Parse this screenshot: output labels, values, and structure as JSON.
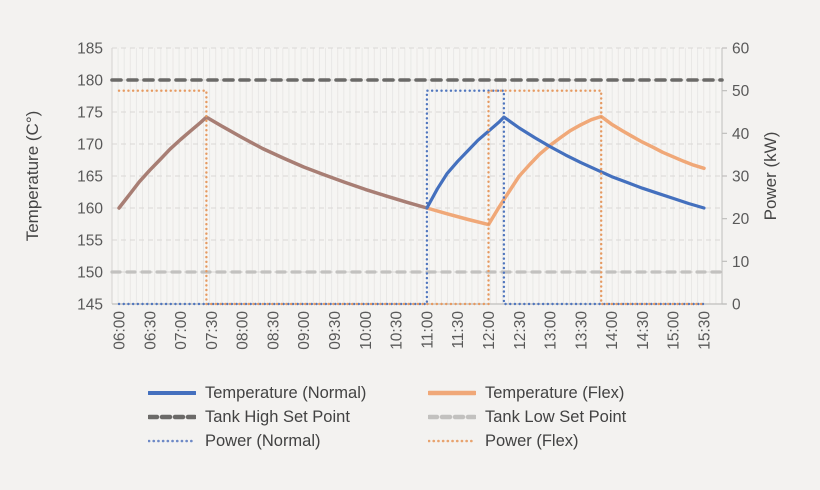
{
  "page": {
    "background": "#F3F2F0"
  },
  "chart_data": {
    "type": "line",
    "title": "",
    "x": {
      "start_hour": 6,
      "end_hour": 15.5,
      "categories": [
        "06:00",
        "06:30",
        "07:00",
        "07:30",
        "08:00",
        "08:30",
        "09:00",
        "09:30",
        "10:00",
        "10:30",
        "11:00",
        "11:30",
        "12:00",
        "12:30",
        "13:00",
        "13:30",
        "14:00",
        "14:30",
        "15:00",
        "15:30"
      ]
    },
    "y_left": {
      "label": "Temperature (C°)",
      "min": 145,
      "max": 185,
      "step": 5,
      "ticks": [
        145,
        150,
        155,
        160,
        165,
        170,
        175,
        180,
        185
      ]
    },
    "y_right": {
      "label": "Power (kW)",
      "min": 0,
      "max": 60,
      "step": 10,
      "ticks": [
        0,
        10,
        20,
        30,
        40,
        50,
        60
      ]
    },
    "grid": {
      "vertical_minor": true,
      "horizontal_dashed": true,
      "legend_position": "bottom"
    },
    "series": [
      {
        "name": "Temperature (Normal)",
        "axis": "left",
        "style": "solid",
        "color": "#4470BE",
        "width": 3.2,
        "points": [
          [
            6,
            160
          ],
          [
            6.17,
            162.1
          ],
          [
            6.33,
            164.1
          ],
          [
            6.5,
            165.9
          ],
          [
            6.67,
            167.6
          ],
          [
            6.83,
            169.2
          ],
          [
            7,
            170.7
          ],
          [
            7.17,
            172.1
          ],
          [
            7.33,
            173.4
          ],
          [
            7.42,
            174.2
          ],
          [
            7.67,
            172.8
          ],
          [
            8,
            171
          ],
          [
            8.33,
            169.3
          ],
          [
            8.67,
            167.8
          ],
          [
            9,
            166.4
          ],
          [
            9.33,
            165.2
          ],
          [
            9.67,
            164
          ],
          [
            10,
            162.9
          ],
          [
            10.33,
            161.9
          ],
          [
            10.67,
            160.9
          ],
          [
            11,
            160
          ],
          [
            11.17,
            163
          ],
          [
            11.33,
            165.4
          ],
          [
            11.5,
            167.3
          ],
          [
            11.67,
            169
          ],
          [
            11.83,
            170.6
          ],
          [
            12,
            172
          ],
          [
            12.17,
            173.4
          ],
          [
            12.25,
            174.2
          ],
          [
            12.5,
            172.5
          ],
          [
            12.75,
            171
          ],
          [
            13,
            169.6
          ],
          [
            13.25,
            168.3
          ],
          [
            13.5,
            167.1
          ],
          [
            13.75,
            166
          ],
          [
            14,
            164.9
          ],
          [
            14.25,
            164
          ],
          [
            14.5,
            163.1
          ],
          [
            14.75,
            162.3
          ],
          [
            15,
            161.5
          ],
          [
            15.25,
            160.7
          ],
          [
            15.5,
            160
          ]
        ]
      },
      {
        "name": "Temperature (Flex)",
        "axis": "left",
        "style": "solid",
        "color": "#F0A878",
        "width": 3.5,
        "overlap_until": 11,
        "overlap_color": "#A87E74",
        "points": [
          [
            6,
            160
          ],
          [
            6.17,
            162.1
          ],
          [
            6.33,
            164.1
          ],
          [
            6.5,
            165.9
          ],
          [
            6.67,
            167.6
          ],
          [
            6.83,
            169.2
          ],
          [
            7,
            170.7
          ],
          [
            7.17,
            172.1
          ],
          [
            7.33,
            173.4
          ],
          [
            7.42,
            174.2
          ],
          [
            7.67,
            172.8
          ],
          [
            8,
            171
          ],
          [
            8.33,
            169.3
          ],
          [
            8.67,
            167.8
          ],
          [
            9,
            166.4
          ],
          [
            9.33,
            165.2
          ],
          [
            9.67,
            164
          ],
          [
            10,
            162.9
          ],
          [
            10.33,
            161.9
          ],
          [
            10.67,
            160.9
          ],
          [
            11,
            160
          ],
          [
            11.33,
            159.1
          ],
          [
            11.67,
            158.2
          ],
          [
            12,
            157.4
          ],
          [
            12.17,
            160.1
          ],
          [
            12.33,
            162.5
          ],
          [
            12.5,
            165
          ],
          [
            12.67,
            166.8
          ],
          [
            12.83,
            168.4
          ],
          [
            13,
            169.8
          ],
          [
            13.17,
            171
          ],
          [
            13.33,
            172.1
          ],
          [
            13.5,
            173
          ],
          [
            13.67,
            173.8
          ],
          [
            13.83,
            174.3
          ],
          [
            14,
            173.1
          ],
          [
            14.17,
            172.1
          ],
          [
            14.33,
            171.2
          ],
          [
            14.5,
            170.3
          ],
          [
            14.67,
            169.5
          ],
          [
            14.83,
            168.7
          ],
          [
            15,
            168
          ],
          [
            15.17,
            167.3
          ],
          [
            15.33,
            166.7
          ],
          [
            15.5,
            166.2
          ]
        ]
      },
      {
        "name": "Tank High Set Point",
        "axis": "left",
        "style": "dashed",
        "color": "#6B6A68",
        "width": 3.6,
        "dash": "9 7",
        "value": 180
      },
      {
        "name": "Tank Low Set Point",
        "axis": "left",
        "style": "dashed",
        "color": "#C2C1BF",
        "width": 3.2,
        "dash": "8 7",
        "value": 150
      },
      {
        "name": "Power (Normal)",
        "axis": "right",
        "style": "dotted",
        "color": "#5076BE",
        "width": 2.4,
        "dash": "0.1 4.6",
        "points": [
          [
            6,
            0
          ],
          [
            11,
            0
          ],
          [
            11,
            50
          ],
          [
            12.25,
            50
          ],
          [
            12.25,
            0
          ],
          [
            15.5,
            0
          ]
        ]
      },
      {
        "name": "Power (Flex)",
        "axis": "right",
        "style": "dotted",
        "color": "#E69A61",
        "width": 2.4,
        "dash": "0.1 4.6",
        "points": [
          [
            6,
            50
          ],
          [
            7.42,
            50
          ],
          [
            7.42,
            0
          ],
          [
            12,
            0
          ],
          [
            12,
            50
          ],
          [
            13.83,
            50
          ],
          [
            13.83,
            0
          ],
          [
            15.5,
            0
          ]
        ]
      }
    ]
  },
  "legend": {
    "items": [
      {
        "label": "Temperature (Normal)",
        "color": "#4470BE",
        "style": "solid",
        "width": 4
      },
      {
        "label": "Temperature (Flex)",
        "color": "#F0A878",
        "style": "solid",
        "width": 4.5
      },
      {
        "label": "Tank High Set Point",
        "color": "#6B6A68",
        "style": "dashed",
        "width": 4.5
      },
      {
        "label": "Tank Low Set Point",
        "color": "#C2C1BF",
        "style": "dashed",
        "width": 4.5
      },
      {
        "label": "Power (Normal)",
        "color": "#6D89C6",
        "style": "dotted",
        "width": 2.6
      },
      {
        "label": "Power (Flex)",
        "color": "#E8A36E",
        "style": "dotted",
        "width": 2.6
      }
    ]
  }
}
